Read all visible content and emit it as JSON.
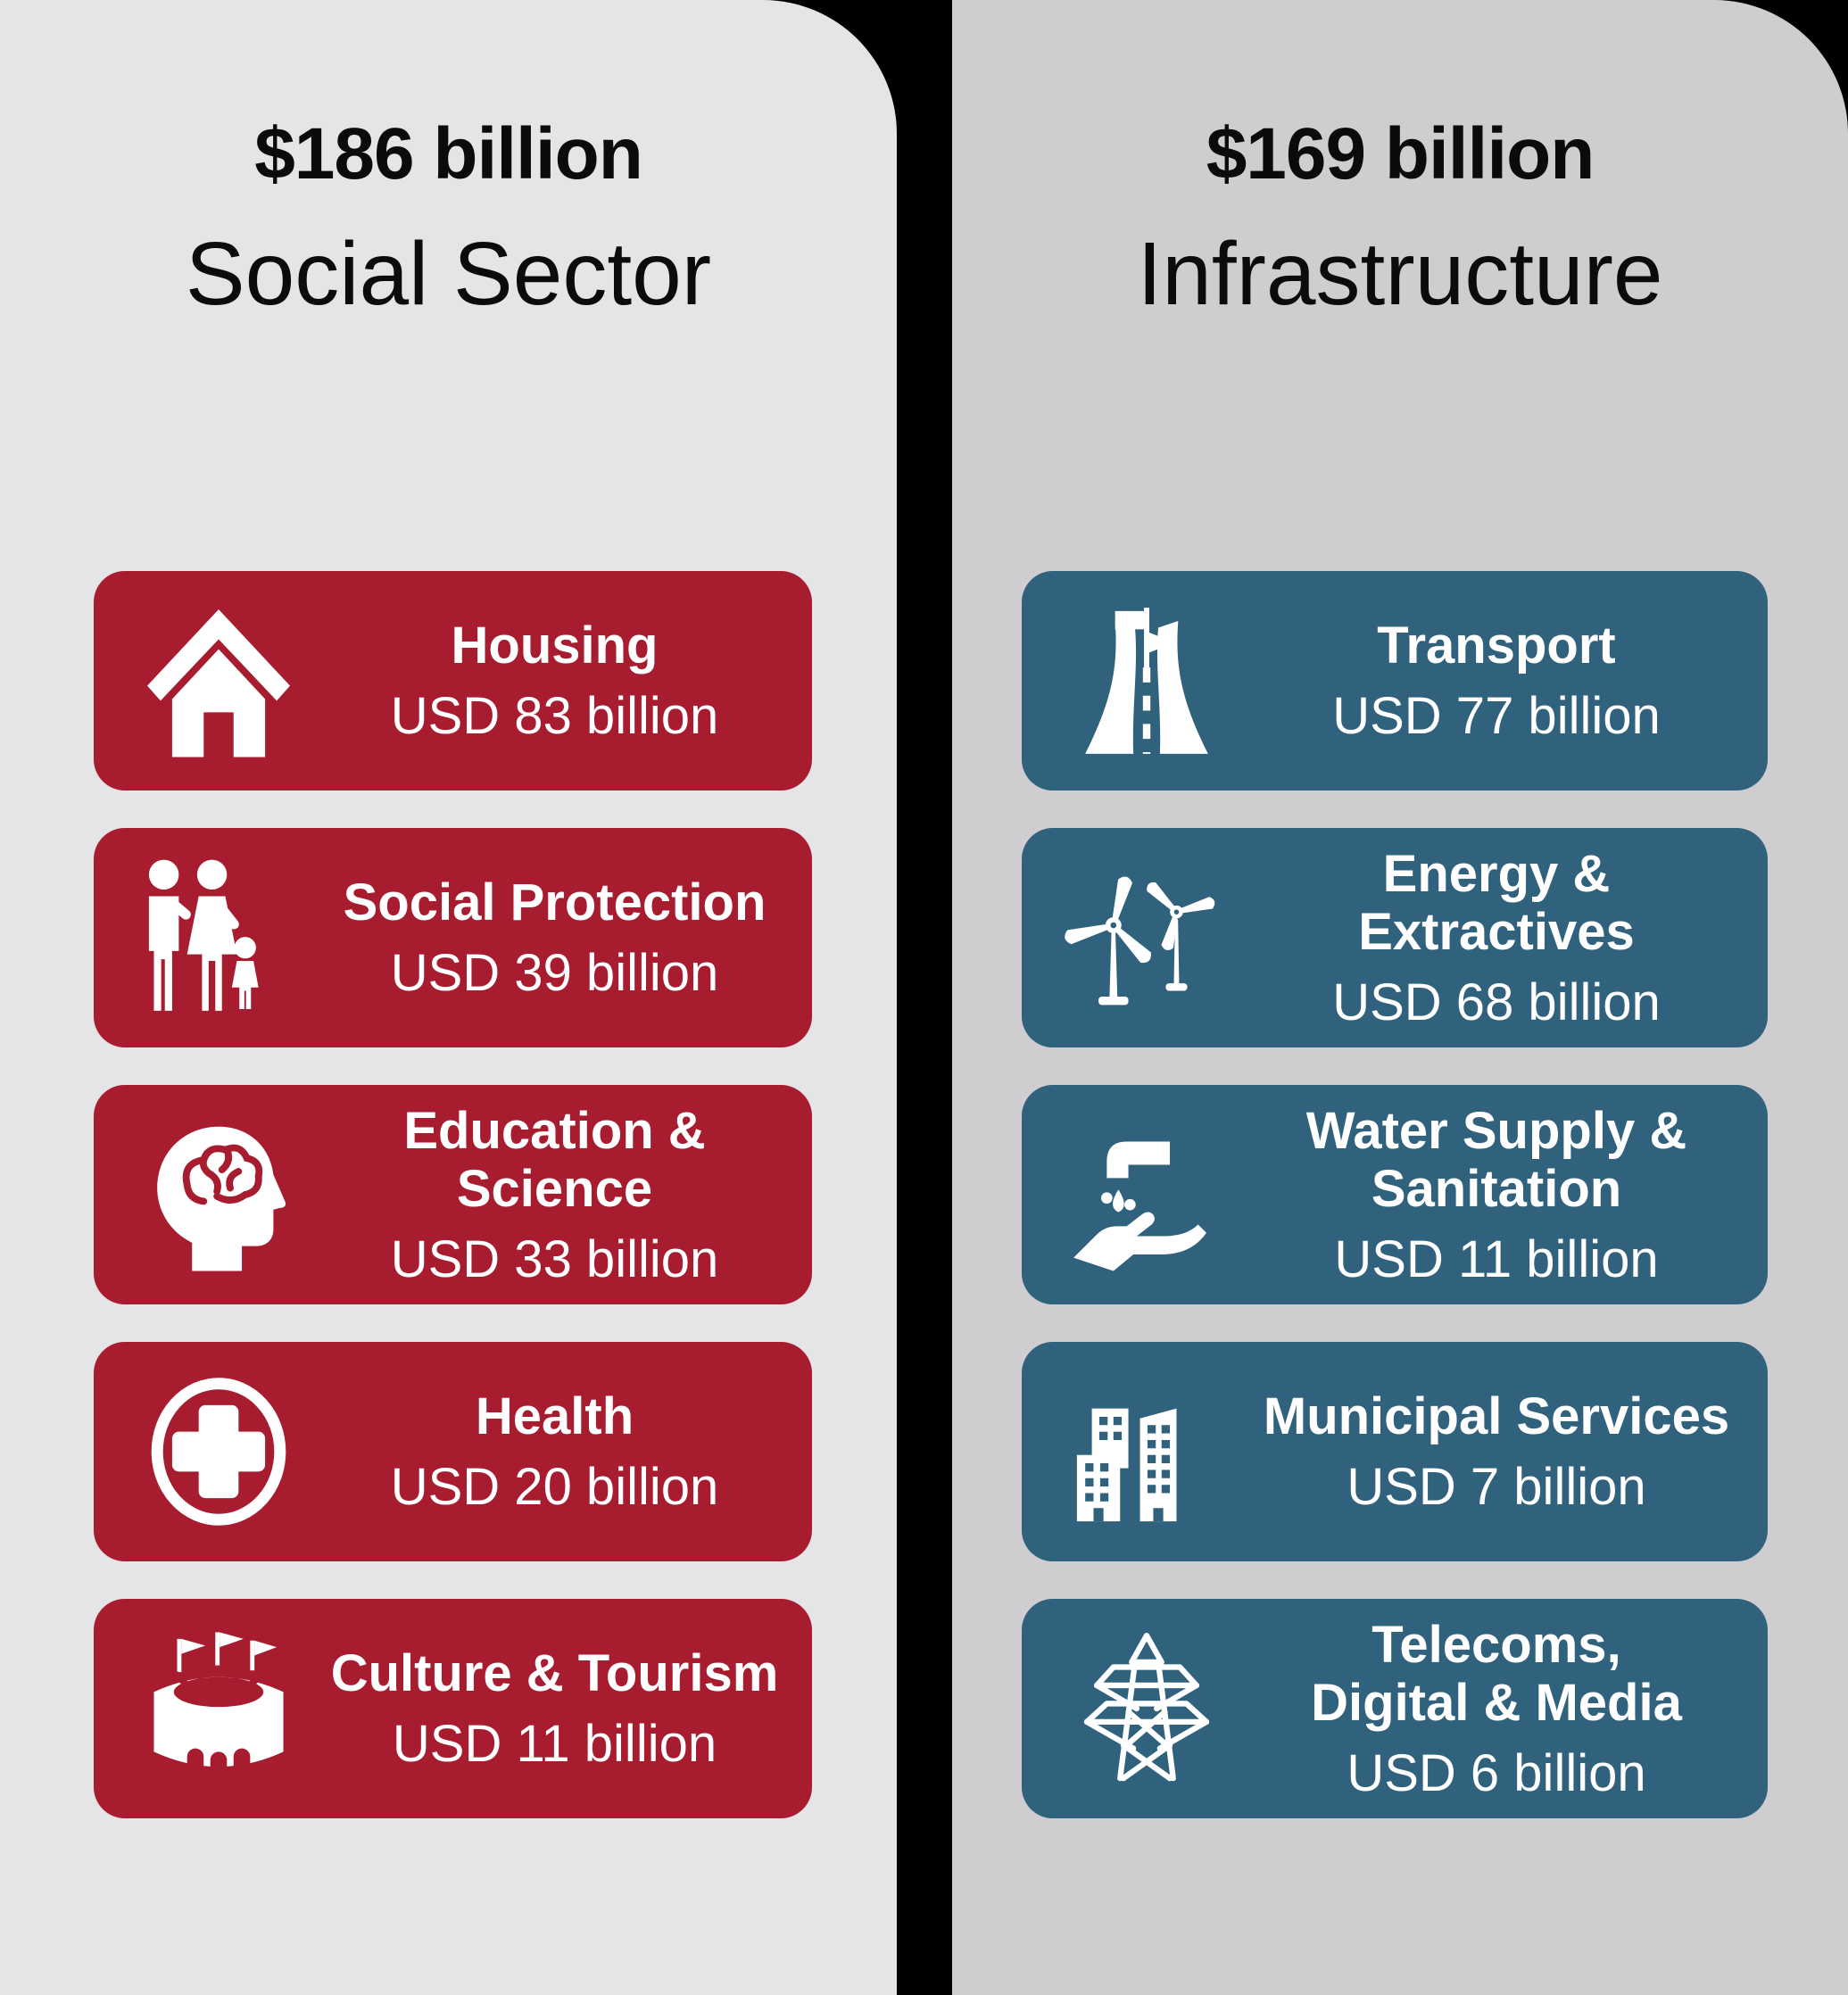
{
  "page": {
    "background": "#000000"
  },
  "columns": [
    {
      "name": "social-sector",
      "panel_color": "#e5e4e6",
      "card_color": "#a81c30",
      "header": {
        "amount": "$186 billion",
        "label": "Social Sector"
      },
      "cards": [
        {
          "icon": "house-icon",
          "title_lines": [
            "Housing"
          ],
          "value": "USD 83 billion"
        },
        {
          "icon": "family-icon",
          "title_lines": [
            "Social Protection"
          ],
          "value": "USD 39 billion"
        },
        {
          "icon": "head-brain-icon",
          "title_lines": [
            "Education &",
            "Science"
          ],
          "value": "USD 33 billion"
        },
        {
          "icon": "medical-cross-icon",
          "title_lines": [
            "Health"
          ],
          "value": "USD 20 billion"
        },
        {
          "icon": "stadium-icon",
          "title_lines": [
            "Culture & Tourism"
          ],
          "value": "USD 11 billion"
        }
      ]
    },
    {
      "name": "infrastructure",
      "panel_color": "#cfcdcf",
      "card_color": "#31627d",
      "header": {
        "amount": "$169 billion",
        "label": "Infrastructure"
      },
      "cards": [
        {
          "icon": "road-flag-icon",
          "title_lines": [
            "Transport"
          ],
          "value": "USD 77 billion"
        },
        {
          "icon": "wind-turbines-icon",
          "title_lines": [
            "Energy &",
            "Extractives"
          ],
          "value": "USD 68 billion"
        },
        {
          "icon": "tap-hand-icon",
          "title_lines": [
            "Water Supply &",
            "Sanitation"
          ],
          "value": "USD 11 billion"
        },
        {
          "icon": "city-buildings-icon",
          "title_lines": [
            "Municipal Services"
          ],
          "value": "USD 7 billion"
        },
        {
          "icon": "power-tower-icon",
          "title_lines": [
            "Telecoms,",
            "Digital & Media"
          ],
          "value": "USD 6 billion"
        }
      ]
    }
  ],
  "chart_data": [
    {
      "type": "table",
      "title": "$186 billion Social Sector",
      "categories": [
        "Housing",
        "Social Protection",
        "Education & Science",
        "Health",
        "Culture & Tourism"
      ],
      "values": [
        83,
        39,
        33,
        20,
        11
      ],
      "unit": "USD billion",
      "total_label": "$186 billion"
    },
    {
      "type": "table",
      "title": "$169 billion Infrastructure",
      "categories": [
        "Transport",
        "Energy & Extractives",
        "Water Supply & Sanitation",
        "Municipal Services",
        "Telecoms, Digital & Media"
      ],
      "values": [
        77,
        68,
        11,
        7,
        6
      ],
      "unit": "USD billion",
      "total_label": "$169 billion"
    }
  ]
}
